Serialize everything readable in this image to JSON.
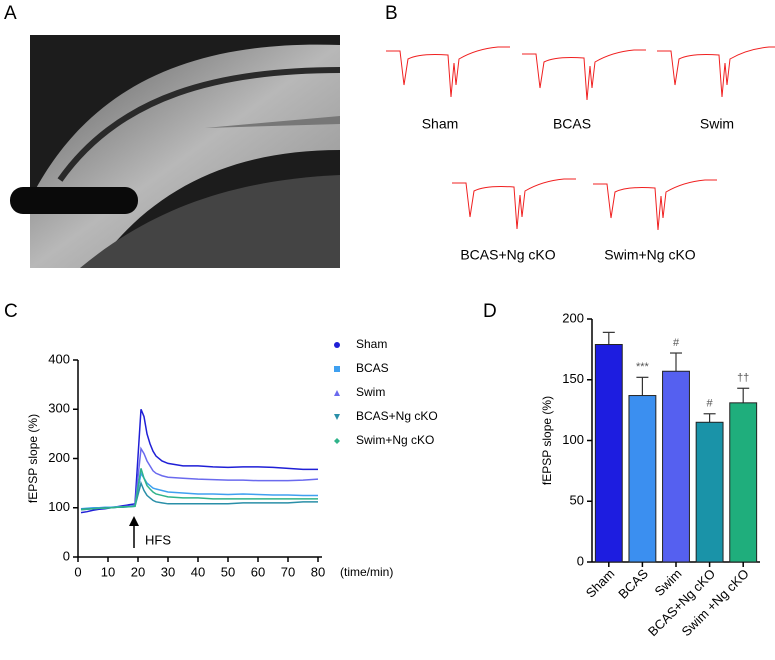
{
  "panels": [
    "A",
    "B",
    "C",
    "D"
  ],
  "traces": [
    "Sham",
    "BCAS",
    "Swim",
    "BCAS+Ng cKO",
    "Swim+Ng cKO"
  ],
  "chart_data": [
    {
      "type": "line",
      "ylabel": "fEPSP slope (%)",
      "xlabel": "(time/min)",
      "annotation": "HFS",
      "x": [
        1,
        3,
        5,
        7,
        9,
        11,
        13,
        15,
        17,
        19,
        21,
        22,
        23,
        24,
        25,
        26,
        28,
        30,
        35,
        40,
        45,
        50,
        55,
        60,
        65,
        70,
        75,
        80
      ],
      "xlim": [
        0,
        80
      ],
      "xticks": [
        0,
        10,
        20,
        30,
        40,
        50,
        60,
        70,
        80
      ],
      "ylim": [
        0,
        400
      ],
      "yticks": [
        0,
        100,
        200,
        300,
        400
      ],
      "series": [
        {
          "name": "Sham",
          "color": "#1f1fd6",
          "marker": "circle",
          "values": [
            90,
            92,
            95,
            97,
            98,
            100,
            102,
            104,
            106,
            108,
            300,
            285,
            250,
            230,
            215,
            205,
            195,
            190,
            185,
            185,
            183,
            182,
            183,
            183,
            182,
            180,
            178,
            178
          ]
        },
        {
          "name": "BCAS",
          "color": "#3fa0f0",
          "marker": "square",
          "values": [
            98,
            99,
            100,
            100,
            101,
            101,
            102,
            102,
            103,
            104,
            170,
            160,
            150,
            145,
            140,
            138,
            135,
            132,
            130,
            128,
            128,
            127,
            128,
            127,
            126,
            126,
            125,
            125
          ]
        },
        {
          "name": "Swim",
          "color": "#6a6aee",
          "marker": "triangle-up",
          "values": [
            96,
            97,
            98,
            99,
            100,
            100,
            101,
            102,
            103,
            104,
            220,
            210,
            195,
            185,
            175,
            170,
            165,
            162,
            160,
            158,
            157,
            156,
            156,
            155,
            155,
            155,
            156,
            158
          ]
        },
        {
          "name": "BCAS+Ng cKO",
          "color": "#2a8fa8",
          "marker": "triangle-down",
          "values": [
            97,
            98,
            98,
            99,
            100,
            100,
            101,
            101,
            102,
            103,
            150,
            135,
            125,
            120,
            115,
            112,
            110,
            108,
            108,
            108,
            108,
            108,
            110,
            110,
            110,
            110,
            112,
            112
          ]
        },
        {
          "name": "Swim+Ng cKO",
          "color": "#2fb38a",
          "marker": "diamond",
          "values": [
            96,
            97,
            98,
            99,
            99,
            100,
            101,
            102,
            102,
            103,
            180,
            160,
            145,
            138,
            132,
            128,
            125,
            122,
            120,
            120,
            118,
            118,
            118,
            118,
            118,
            118,
            118,
            118
          ]
        }
      ]
    },
    {
      "type": "bar",
      "ylabel": "fEPSP slope (%)",
      "categories": [
        "Sham",
        "BCAS",
        "Swim",
        "BCAS+Ng cKO",
        "Swim +Ng cKO"
      ],
      "values": [
        179,
        137,
        157,
        115,
        131
      ],
      "errors": [
        10,
        15,
        15,
        7,
        12
      ],
      "annotations": [
        null,
        "***",
        "#",
        "#",
        "††"
      ],
      "colors": [
        "#1d1de0",
        "#3b8ff0",
        "#5560f0",
        "#1a93a8",
        "#1fae7c"
      ],
      "ylim": [
        0,
        200
      ],
      "yticks": [
        0,
        50,
        100,
        150,
        200
      ]
    }
  ]
}
